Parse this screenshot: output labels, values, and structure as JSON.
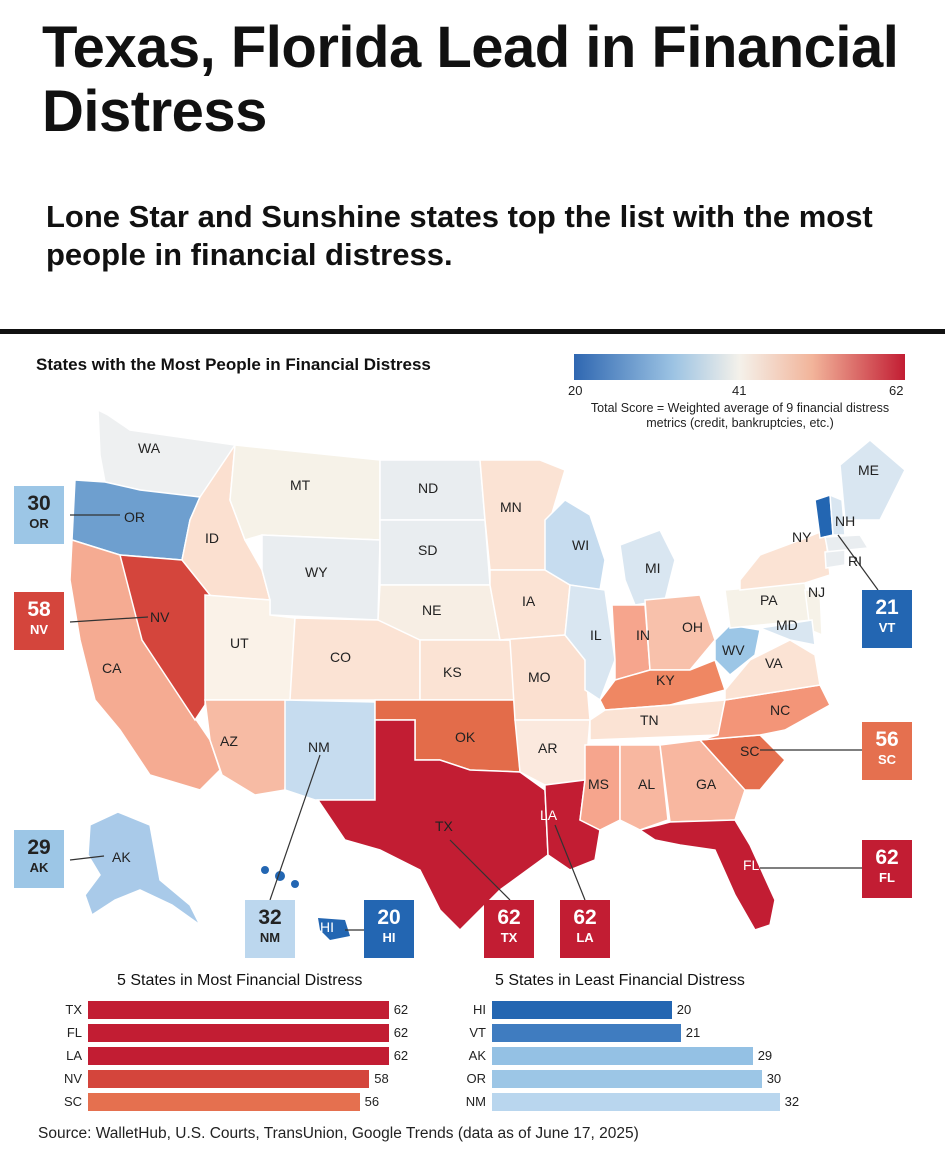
{
  "header": {
    "title": "Texas, Florida Lead in Financial Distress",
    "subtitle": "Lone Star and Sunshine states top the list with the most people in financial distress."
  },
  "map": {
    "title": "States with the Most People in Financial Distress",
    "legend": {
      "min": "20",
      "mid": "41",
      "max": "62",
      "note": "Total Score = Weighted average of 9 financial distress metrics (credit, bankruptcies, etc.)",
      "colors": [
        "#2f67b1",
        "#9cc3e3",
        "#f4f1ea",
        "#f2b49a",
        "#c21d33"
      ]
    },
    "state_labels": [
      "WA",
      "OR",
      "ID",
      "MT",
      "WY",
      "CA",
      "NV",
      "UT",
      "AZ",
      "CO",
      "NM",
      "ND",
      "SD",
      "NE",
      "KS",
      "OK",
      "TX",
      "MN",
      "IA",
      "MO",
      "AR",
      "LA",
      "WI",
      "IL",
      "MI",
      "IN",
      "OH",
      "KY",
      "TN",
      "MS",
      "AL",
      "GA",
      "FL",
      "SC",
      "NC",
      "VA",
      "WV",
      "PA",
      "NY",
      "NJ",
      "MD",
      "ME",
      "NH",
      "RI",
      "AK",
      "HI"
    ],
    "callouts": [
      {
        "abbr": "OR",
        "value": "30",
        "color": "#9cc6e6"
      },
      {
        "abbr": "NV",
        "value": "58",
        "color": "#d4453c"
      },
      {
        "abbr": "AK",
        "value": "29",
        "color": "#9cc6e6"
      },
      {
        "abbr": "NM",
        "value": "32",
        "color": "#bcd7ee"
      },
      {
        "abbr": "HI",
        "value": "20",
        "color": "#2366b2"
      },
      {
        "abbr": "TX",
        "value": "62",
        "color": "#c21d33"
      },
      {
        "abbr": "LA",
        "value": "62",
        "color": "#c21d33"
      },
      {
        "abbr": "FL",
        "value": "62",
        "color": "#c21d33"
      },
      {
        "abbr": "SC",
        "value": "56",
        "color": "#e5704f"
      },
      {
        "abbr": "VT",
        "value": "21",
        "color": "#2366b2"
      }
    ]
  },
  "most_distress": {
    "title": "5 States in Most Financial Distress",
    "rows": [
      {
        "abbr": "TX",
        "value": 62,
        "label": "62",
        "color": "#c21d33"
      },
      {
        "abbr": "FL",
        "value": 62,
        "label": "62",
        "color": "#c21d33"
      },
      {
        "abbr": "LA",
        "value": 62,
        "label": "62",
        "color": "#c21d33"
      },
      {
        "abbr": "NV",
        "value": 58,
        "label": "58",
        "color": "#d4453c"
      },
      {
        "abbr": "SC",
        "value": 56,
        "label": "56",
        "color": "#e5704f"
      }
    ]
  },
  "least_distress": {
    "title": "5 States in Least Financial Distress",
    "rows": [
      {
        "abbr": "HI",
        "value": 20,
        "label": "20",
        "color": "#2366b2"
      },
      {
        "abbr": "VT",
        "value": 21,
        "label": "21",
        "color": "#3f7cc0"
      },
      {
        "abbr": "AK",
        "value": 29,
        "label": "29",
        "color": "#94c1e4"
      },
      {
        "abbr": "OR",
        "value": 30,
        "label": "30",
        "color": "#9cc6e6"
      },
      {
        "abbr": "NM",
        "value": 32,
        "label": "32",
        "color": "#b9d6ee"
      }
    ]
  },
  "source": "Source: WalletHub, U.S. Courts, TransUnion, Google Trends (data as of June 17, 2025)"
}
